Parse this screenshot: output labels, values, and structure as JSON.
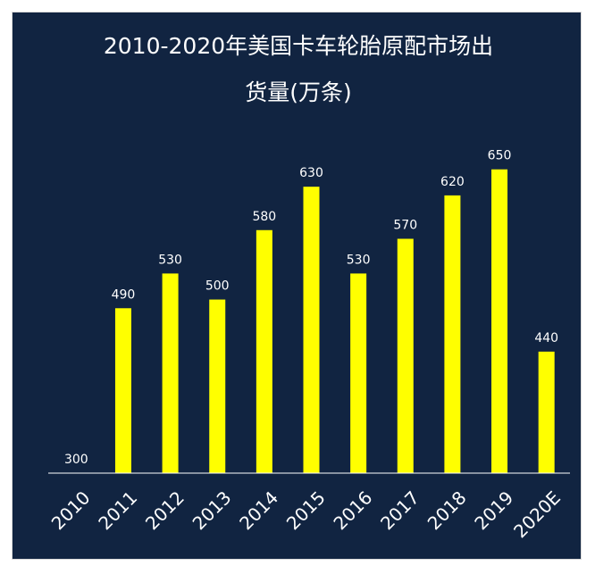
{
  "chart_data": {
    "type": "bar",
    "title_lines": [
      "2010-2020年美国卡车轮胎原配市场出",
      "货量(万条)"
    ],
    "categories": [
      "2010",
      "2011",
      "2012",
      "2013",
      "2014",
      "2015",
      "2016",
      "2017",
      "2018",
      "2019",
      "2020E"
    ],
    "values": [
      300,
      490,
      530,
      500,
      580,
      630,
      530,
      570,
      620,
      650,
      440
    ],
    "data_labels": [
      "300",
      "490",
      "530",
      "500",
      "580",
      "630",
      "530",
      "570",
      "620",
      "650",
      "440"
    ],
    "xlabel": "",
    "ylabel": "",
    "ylim": [
      300,
      660
    ],
    "y_axis_visible": false,
    "grid": false,
    "legend": "none",
    "colors": {
      "background": "#112441",
      "bar": "#ffff00",
      "text": "#ffffff",
      "axis": "#ffffff"
    }
  }
}
